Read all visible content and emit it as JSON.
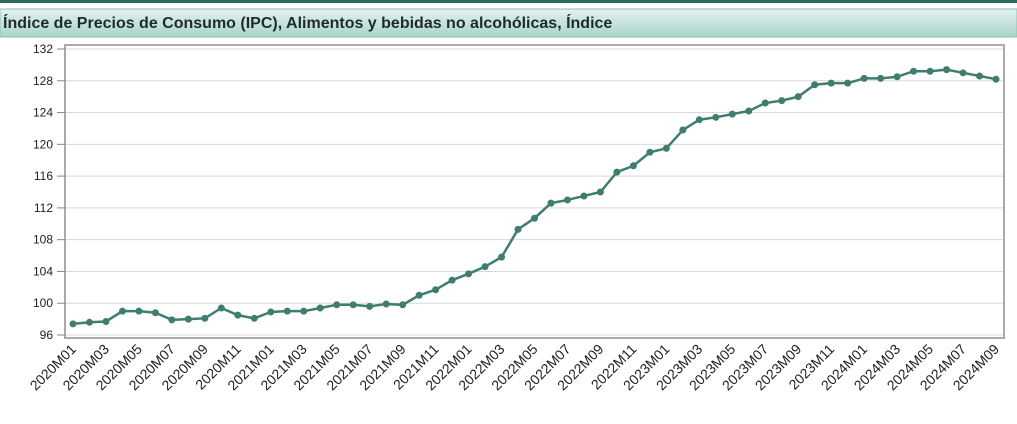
{
  "chart_data": {
    "type": "line",
    "title": "Índice de Precios de Consumo (IPC), Alimentos y bebidas no alcohólicas, Índice",
    "categories": [
      "2020M01",
      null,
      "2020M03",
      null,
      "2020M05",
      null,
      "2020M07",
      null,
      "2020M09",
      null,
      "2020M11",
      null,
      "2021M01",
      null,
      "2021M03",
      null,
      "2021M05",
      null,
      "2021M07",
      null,
      "2021M09",
      null,
      "2021M11",
      null,
      "2022M01",
      null,
      "2022M03",
      null,
      "2022M05",
      null,
      "2022M07",
      null,
      "2022M09",
      null,
      "2022M11",
      null,
      "2023M01",
      null,
      "2023M03",
      null,
      "2023M05",
      null,
      "2023M07",
      null,
      "2023M09",
      null,
      "2023M11",
      null,
      "2024M01",
      null,
      "2024M03",
      null,
      "2024M05",
      null,
      "2024M07",
      null,
      "2024M09"
    ],
    "series": [
      {
        "name": "Índice",
        "color": "#3f7d70",
        "values": [
          97.4,
          97.6,
          97.7,
          99.0,
          99.0,
          98.8,
          97.9,
          98.0,
          98.1,
          99.4,
          98.5,
          98.1,
          98.9,
          99.0,
          99.0,
          99.4,
          99.8,
          99.8,
          99.6,
          99.9,
          99.8,
          101.0,
          101.7,
          102.9,
          103.7,
          104.6,
          105.8,
          109.3,
          110.7,
          112.6,
          113.0,
          113.5,
          114.0,
          116.5,
          117.3,
          119.0,
          119.5,
          121.8,
          123.1,
          123.4,
          123.8,
          124.2,
          125.2,
          125.5,
          126.0,
          127.5,
          127.7,
          127.7,
          128.3,
          128.3,
          128.5,
          129.2,
          129.2,
          129.4,
          129.0,
          128.6,
          128.2
        ]
      }
    ],
    "ylim": [
      96,
      132
    ],
    "yticks": [
      96,
      100,
      104,
      108,
      112,
      116,
      120,
      124,
      128,
      132
    ],
    "grid": true
  }
}
